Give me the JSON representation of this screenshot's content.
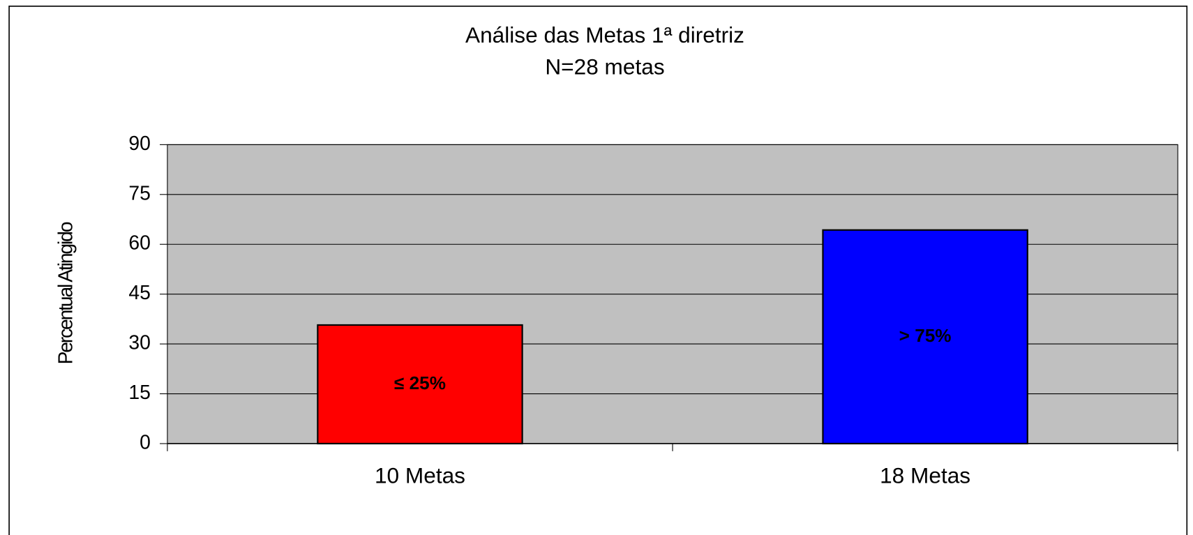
{
  "chart_data": {
    "type": "bar",
    "title": "Análise das Metas 1ª diretriz",
    "subtitle": "N=28 metas",
    "y_label": "Percentual Atingido",
    "categories": [
      "10 Metas",
      "18 Metas"
    ],
    "values": [
      35.7,
      64.3
    ],
    "colors": [
      "#ff0000",
      "#0000ff"
    ],
    "bar_labels": [
      "≤ 25%",
      "> 75%"
    ],
    "ylim": [
      0,
      90
    ],
    "yticks": [
      0,
      15,
      30,
      45,
      60,
      75,
      90
    ],
    "grid": true,
    "plot_background": "#c0c0c0"
  }
}
